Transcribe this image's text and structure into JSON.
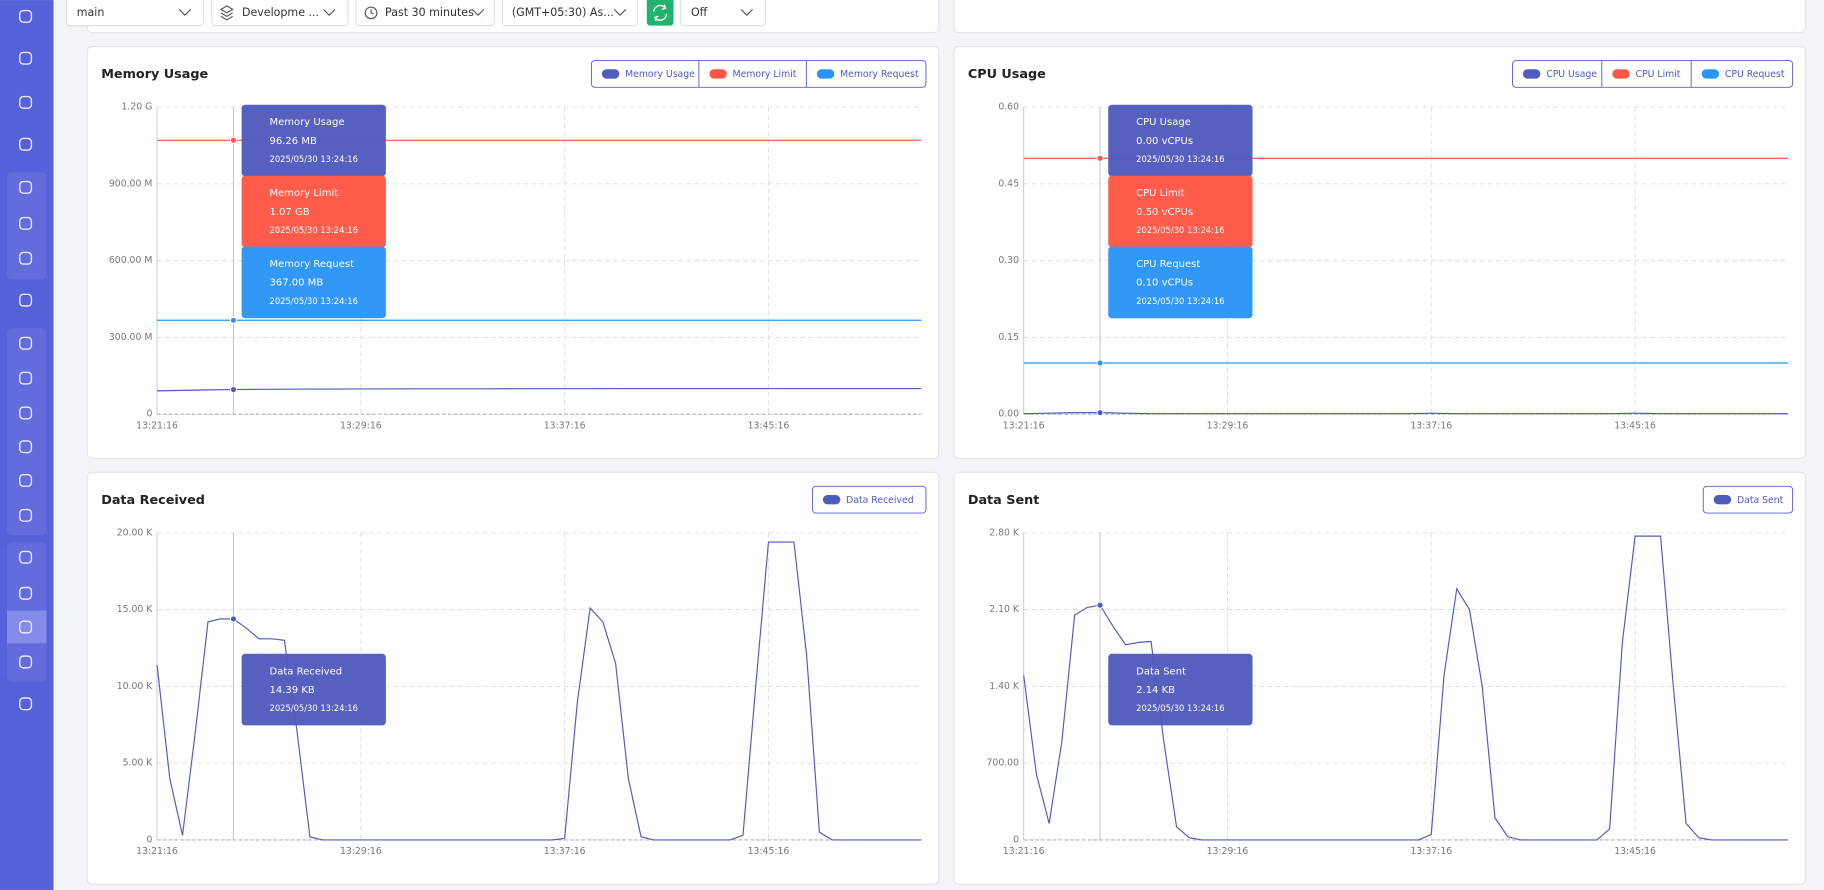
{
  "toolbar": {
    "branch": "main",
    "environment": "Developme ...",
    "time_range": "Past 30 minutes",
    "timezone": "(GMT+05:30) As...",
    "refresh": "Off"
  },
  "chart_data": [
    {
      "type": "line",
      "title": "Memory Usage",
      "tooltip_time": "2025/05/30 13:24:16",
      "x": [
        "13:21:16",
        "13:22:16",
        "13:23:16",
        "13:24:16",
        "13:25:16",
        "13:26:16",
        "13:27:16",
        "13:28:16",
        "13:29:16",
        "13:30:16",
        "13:31:16",
        "13:32:16",
        "13:33:16",
        "13:34:16",
        "13:35:16",
        "13:36:16",
        "13:37:16",
        "13:38:16",
        "13:39:16",
        "13:40:16",
        "13:41:16",
        "13:42:16",
        "13:43:16",
        "13:44:16",
        "13:45:16",
        "13:46:16",
        "13:47:16",
        "13:48:16",
        "13:49:16",
        "13:50:16",
        "13:51:16"
      ],
      "xlim": [
        "13:21:16",
        "13:51:16"
      ],
      "xticks": [
        "13:21:16",
        "13:29:16",
        "13:37:16",
        "13:45:16"
      ],
      "ylim": [
        0,
        1200
      ],
      "yticks": [
        0,
        {
          "value": 300,
          "label": "300.00 M"
        },
        {
          "value": 600,
          "label": "600.00 M"
        },
        {
          "value": 900,
          "label": "900.00 M"
        },
        {
          "value": 1200,
          "label": "1.20 G"
        }
      ],
      "grid": true,
      "series": [
        {
          "name": "Memory Usage",
          "color": "#4f5bbd",
          "values": [
            91,
            93,
            95,
            96.26,
            97,
            97.5,
            98,
            98,
            98.5,
            98.5,
            99,
            99,
            99,
            99,
            99.5,
            99.5,
            99.5,
            99.5,
            100,
            100,
            100,
            100,
            100,
            100,
            100,
            100,
            100,
            100,
            100,
            100,
            100
          ],
          "value_labels": [
            null,
            null,
            null,
            "96.26 MB",
            null,
            null,
            null,
            null,
            null,
            null,
            null,
            null,
            null,
            null,
            null,
            null,
            null,
            null,
            null,
            null,
            null,
            null,
            null,
            null,
            null,
            null,
            null,
            null,
            null,
            null,
            null
          ]
        },
        {
          "name": "Memory Limit",
          "color": "#ff5745",
          "values": [
            1070,
            1070,
            1070,
            1070,
            1070,
            1070,
            1070,
            1070,
            1070,
            1070,
            1070,
            1070,
            1070,
            1070,
            1070,
            1070,
            1070,
            1070,
            1070,
            1070,
            1070,
            1070,
            1070,
            1070,
            1070,
            1070,
            1070,
            1070,
            1070,
            1070,
            1070
          ],
          "value_labels": [
            null,
            null,
            null,
            "1.07 GB",
            null,
            null,
            null,
            null,
            null,
            null,
            null,
            null,
            null,
            null,
            null,
            null,
            null,
            null,
            null,
            null,
            null,
            null,
            null,
            null,
            null,
            null,
            null,
            null,
            null,
            null,
            null
          ]
        },
        {
          "name": "Memory Request",
          "color": "#2a95f5",
          "values": [
            367,
            367,
            367,
            367,
            367,
            367,
            367,
            367,
            367,
            367,
            367,
            367,
            367,
            367,
            367,
            367,
            367,
            367,
            367,
            367,
            367,
            367,
            367,
            367,
            367,
            367,
            367,
            367,
            367,
            367,
            367
          ],
          "value_labels": [
            null,
            null,
            null,
            "367.00 MB",
            null,
            null,
            null,
            null,
            null,
            null,
            null,
            null,
            null,
            null,
            null,
            null,
            null,
            null,
            null,
            null,
            null,
            null,
            null,
            null,
            null,
            null,
            null,
            null,
            null,
            null,
            null
          ]
        }
      ]
    },
    {
      "type": "line",
      "title": "CPU Usage",
      "tooltip_time": "2025/05/30 13:24:16",
      "x": [
        "13:21:16",
        "13:22:16",
        "13:23:16",
        "13:24:16",
        "13:25:16",
        "13:26:16",
        "13:27:16",
        "13:28:16",
        "13:29:16",
        "13:30:16",
        "13:31:16",
        "13:32:16",
        "13:33:16",
        "13:34:16",
        "13:35:16",
        "13:36:16",
        "13:37:16",
        "13:38:16",
        "13:39:16",
        "13:40:16",
        "13:41:16",
        "13:42:16",
        "13:43:16",
        "13:44:16",
        "13:45:16",
        "13:46:16",
        "13:47:16",
        "13:48:16",
        "13:49:16",
        "13:50:16",
        "13:51:16"
      ],
      "xlim": [
        "13:21:16",
        "13:51:16"
      ],
      "xticks": [
        "13:21:16",
        "13:29:16",
        "13:37:16",
        "13:45:16"
      ],
      "ylim": [
        0,
        0.6
      ],
      "yticks": [
        {
          "value": 0,
          "label": "0.00"
        },
        0.15,
        {
          "value": 0.3,
          "label": "0.30"
        },
        0.45,
        {
          "value": 0.6,
          "label": "0.60"
        }
      ],
      "grid": true,
      "series": [
        {
          "name": "CPU Usage",
          "color": "#4f5bbd",
          "values": [
            0.001,
            0.002,
            0.003,
            0.003,
            0.002,
            0.001,
            0.001,
            0.001,
            0.001,
            0.001,
            0.001,
            0.001,
            0.001,
            0.001,
            0.001,
            0.001,
            0.002,
            0.001,
            0.001,
            0.001,
            0.001,
            0.001,
            0.001,
            0.001,
            0.002,
            0.001,
            0.001,
            0.001,
            0.001,
            0.001,
            0.001
          ],
          "value_labels": [
            null,
            null,
            null,
            "0.00 vCPUs",
            null,
            null,
            null,
            null,
            null,
            null,
            null,
            null,
            null,
            null,
            null,
            null,
            null,
            null,
            null,
            null,
            null,
            null,
            null,
            null,
            null,
            null,
            null,
            null,
            null,
            null,
            null
          ]
        },
        {
          "name": "CPU Limit",
          "color": "#ff5745",
          "values": [
            0.5,
            0.5,
            0.5,
            0.5,
            0.5,
            0.5,
            0.5,
            0.5,
            0.5,
            0.5,
            0.5,
            0.5,
            0.5,
            0.5,
            0.5,
            0.5,
            0.5,
            0.5,
            0.5,
            0.5,
            0.5,
            0.5,
            0.5,
            0.5,
            0.5,
            0.5,
            0.5,
            0.5,
            0.5,
            0.5,
            0.5
          ],
          "value_labels": [
            null,
            null,
            null,
            "0.50 vCPUs",
            null,
            null,
            null,
            null,
            null,
            null,
            null,
            null,
            null,
            null,
            null,
            null,
            null,
            null,
            null,
            null,
            null,
            null,
            null,
            null,
            null,
            null,
            null,
            null,
            null,
            null,
            null
          ]
        },
        {
          "name": "CPU Request",
          "color": "#2a95f5",
          "values": [
            0.1,
            0.1,
            0.1,
            0.1,
            0.1,
            0.1,
            0.1,
            0.1,
            0.1,
            0.1,
            0.1,
            0.1,
            0.1,
            0.1,
            0.1,
            0.1,
            0.1,
            0.1,
            0.1,
            0.1,
            0.1,
            0.1,
            0.1,
            0.1,
            0.1,
            0.1,
            0.1,
            0.1,
            0.1,
            0.1,
            0.1
          ],
          "value_labels": [
            null,
            null,
            null,
            "0.10 vCPUs",
            null,
            null,
            null,
            null,
            null,
            null,
            null,
            null,
            null,
            null,
            null,
            null,
            null,
            null,
            null,
            null,
            null,
            null,
            null,
            null,
            null,
            null,
            null,
            null,
            null,
            null,
            null
          ]
        }
      ]
    },
    {
      "type": "line",
      "title": "Data Received",
      "tooltip_time": "2025/05/30 13:24:16",
      "x": [
        "13:21:16",
        "13:21:46",
        "13:22:16",
        "13:22:46",
        "13:23:16",
        "13:23:46",
        "13:24:16",
        "13:24:46",
        "13:25:16",
        "13:25:46",
        "13:26:16",
        "13:26:46",
        "13:27:16",
        "13:27:46",
        "13:28:16",
        "13:28:46",
        "13:29:16",
        "13:29:46",
        "13:30:16",
        "13:30:46",
        "13:31:16",
        "13:31:46",
        "13:32:16",
        "13:32:46",
        "13:33:16",
        "13:33:46",
        "13:34:16",
        "13:34:46",
        "13:35:16",
        "13:35:46",
        "13:36:16",
        "13:36:46",
        "13:37:16",
        "13:37:46",
        "13:38:16",
        "13:38:46",
        "13:39:16",
        "13:39:46",
        "13:40:16",
        "13:40:46",
        "13:41:16",
        "13:41:46",
        "13:42:16",
        "13:42:46",
        "13:43:16",
        "13:43:46",
        "13:44:16",
        "13:44:46",
        "13:45:16",
        "13:45:46",
        "13:46:16",
        "13:46:46",
        "13:47:16",
        "13:47:46",
        "13:48:16",
        "13:48:46",
        "13:49:16",
        "13:49:46",
        "13:50:16",
        "13:50:46",
        "13:51:16"
      ],
      "xlim": [
        "13:21:16",
        "13:51:16"
      ],
      "xticks": [
        "13:21:16",
        "13:29:16",
        "13:37:16",
        "13:45:16"
      ],
      "ylim": [
        0,
        20
      ],
      "yticks": [
        0,
        {
          "value": 5,
          "label": "5.00 K"
        },
        {
          "value": 10,
          "label": "10.00 K"
        },
        {
          "value": 15,
          "label": "15.00 K"
        },
        {
          "value": 20,
          "label": "20.00 K"
        }
      ],
      "grid": true,
      "series": [
        {
          "name": "Data Received",
          "color": "#4f5bbd",
          "values": [
            11.4,
            4.0,
            0.3,
            7.0,
            14.2,
            14.4,
            14.39,
            13.8,
            13.1,
            13.1,
            13.0,
            7.0,
            0.2,
            0,
            0,
            0,
            0,
            0,
            0,
            0,
            0,
            0,
            0,
            0,
            0,
            0,
            0,
            0,
            0,
            0,
            0,
            0,
            0.1,
            9.0,
            15.1,
            14.2,
            11.5,
            4.0,
            0.2,
            0,
            0,
            0,
            0,
            0,
            0,
            0,
            0.3,
            10,
            19.4,
            19.4,
            19.4,
            12,
            0.5,
            0,
            0,
            0,
            0,
            0,
            0,
            0,
            0
          ],
          "value_labels": [
            null,
            null,
            null,
            null,
            null,
            null,
            "14.39 KB",
            null,
            null,
            null,
            null,
            null,
            null,
            null,
            null,
            null,
            null,
            null,
            null,
            null,
            null,
            null,
            null,
            null,
            null,
            null,
            null,
            null,
            null,
            null,
            null,
            null,
            null,
            null,
            null,
            null,
            null,
            null,
            null,
            null,
            null,
            null,
            null,
            null,
            null,
            null,
            null,
            null,
            null,
            null,
            null,
            null,
            null,
            null,
            null,
            null,
            null,
            null,
            null,
            null,
            null
          ]
        }
      ]
    },
    {
      "type": "line",
      "title": "Data Sent",
      "tooltip_time": "2025/05/30 13:24:16",
      "x": [
        "13:21:16",
        "13:21:46",
        "13:22:16",
        "13:22:46",
        "13:23:16",
        "13:23:46",
        "13:24:16",
        "13:24:46",
        "13:25:16",
        "13:25:46",
        "13:26:16",
        "13:26:46",
        "13:27:16",
        "13:27:46",
        "13:28:16",
        "13:28:46",
        "13:29:16",
        "13:29:46",
        "13:30:16",
        "13:30:46",
        "13:31:16",
        "13:31:46",
        "13:32:16",
        "13:32:46",
        "13:33:16",
        "13:33:46",
        "13:34:16",
        "13:34:46",
        "13:35:16",
        "13:35:46",
        "13:36:16",
        "13:36:46",
        "13:37:16",
        "13:37:46",
        "13:38:16",
        "13:38:46",
        "13:39:16",
        "13:39:46",
        "13:40:16",
        "13:40:46",
        "13:41:16",
        "13:41:46",
        "13:42:16",
        "13:42:46",
        "13:43:16",
        "13:43:46",
        "13:44:16",
        "13:44:46",
        "13:45:16",
        "13:45:46",
        "13:46:16",
        "13:46:46",
        "13:47:16",
        "13:47:46",
        "13:48:16",
        "13:48:46",
        "13:49:16",
        "13:49:46",
        "13:50:16",
        "13:50:46",
        "13:51:16"
      ],
      "xlim": [
        "13:21:16",
        "13:51:16"
      ],
      "xticks": [
        "13:21:16",
        "13:29:16",
        "13:37:16",
        "13:45:16"
      ],
      "ylim": [
        0,
        2800
      ],
      "yticks": [
        0,
        {
          "value": 700,
          "label": "700.00"
        },
        {
          "value": 1400,
          "label": "1.40 K"
        },
        {
          "value": 2100,
          "label": "2.10 K"
        },
        {
          "value": 2800,
          "label": "2.80 K"
        }
      ],
      "grid": true,
      "series": [
        {
          "name": "Data Sent",
          "color": "#4f5bbd",
          "values": [
            1500,
            600,
            150,
            900,
            2050,
            2120,
            2140,
            1950,
            1780,
            1800,
            1810,
            900,
            120,
            20,
            0,
            0,
            0,
            0,
            0,
            0,
            0,
            0,
            0,
            0,
            0,
            0,
            0,
            0,
            0,
            0,
            0,
            0,
            50,
            1500,
            2290,
            2100,
            1400,
            200,
            30,
            0,
            0,
            0,
            0,
            0,
            0,
            0,
            100,
            1800,
            2770,
            2770,
            2770,
            1400,
            150,
            20,
            0,
            0,
            0,
            0,
            0,
            0,
            0
          ],
          "value_labels": [
            null,
            null,
            null,
            null,
            null,
            null,
            "2.14 KB",
            null,
            null,
            null,
            null,
            null,
            null,
            null,
            null,
            null,
            null,
            null,
            null,
            null,
            null,
            null,
            null,
            null,
            null,
            null,
            null,
            null,
            null,
            null,
            null,
            null,
            null,
            null,
            null,
            null,
            null,
            null,
            null,
            null,
            null,
            null,
            null,
            null,
            null,
            null,
            null,
            null,
            null,
            null,
            null,
            null,
            null,
            null,
            null,
            null,
            null,
            null,
            null,
            null,
            null
          ]
        }
      ]
    }
  ]
}
